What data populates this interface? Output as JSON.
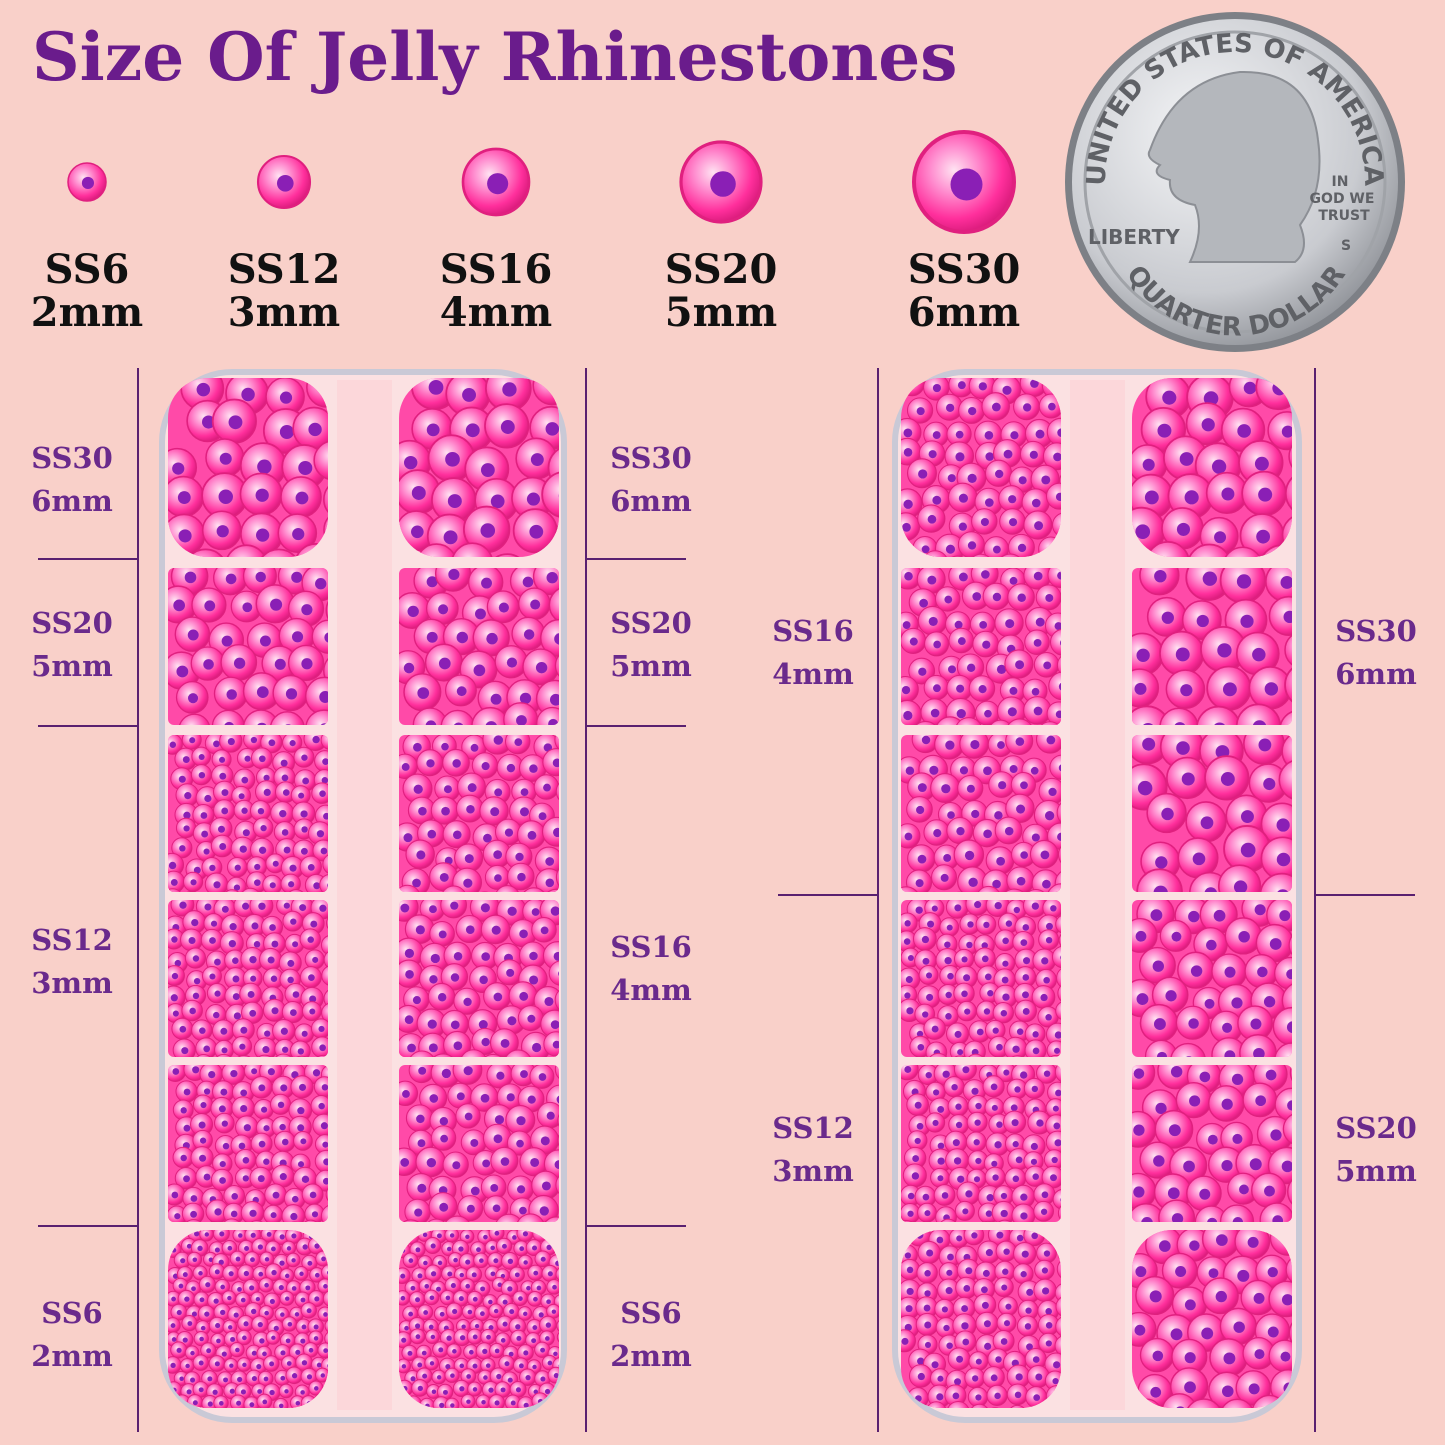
{
  "title": "Size Of Jelly Rhinestones",
  "size_guide": [
    {
      "code": "SS6",
      "mm": "2mm"
    },
    {
      "code": "SS12",
      "mm": "3mm"
    },
    {
      "code": "SS16",
      "mm": "4mm"
    },
    {
      "code": "SS20",
      "mm": "5mm"
    },
    {
      "code": "SS30",
      "mm": "6mm"
    }
  ],
  "coin": {
    "top": "UNITED STATES OF AMERICA",
    "motto": [
      "IN",
      "GOD WE",
      "TRUST"
    ],
    "liberty": "LIBERTY",
    "mint": "S",
    "bottom": "QUARTER DOLLAR"
  },
  "left_tray": {
    "left_labels": [
      {
        "code": "SS30",
        "mm": "6mm"
      },
      {
        "code": "SS20",
        "mm": "5mm"
      },
      {
        "code": "SS12",
        "mm": "3mm"
      },
      {
        "code": "SS6",
        "mm": "2mm"
      }
    ],
    "right_labels": [
      {
        "code": "SS30",
        "mm": "6mm"
      },
      {
        "code": "SS20",
        "mm": "5mm"
      },
      {
        "code": "SS16",
        "mm": "4mm"
      },
      {
        "code": "SS6",
        "mm": "2mm"
      }
    ]
  },
  "right_tray": {
    "left_labels": [
      {
        "code": "SS16",
        "mm": "4mm"
      },
      {
        "code": "SS12",
        "mm": "3mm"
      }
    ],
    "right_labels": [
      {
        "code": "SS30",
        "mm": "6mm"
      },
      {
        "code": "SS20",
        "mm": "5mm"
      }
    ]
  }
}
